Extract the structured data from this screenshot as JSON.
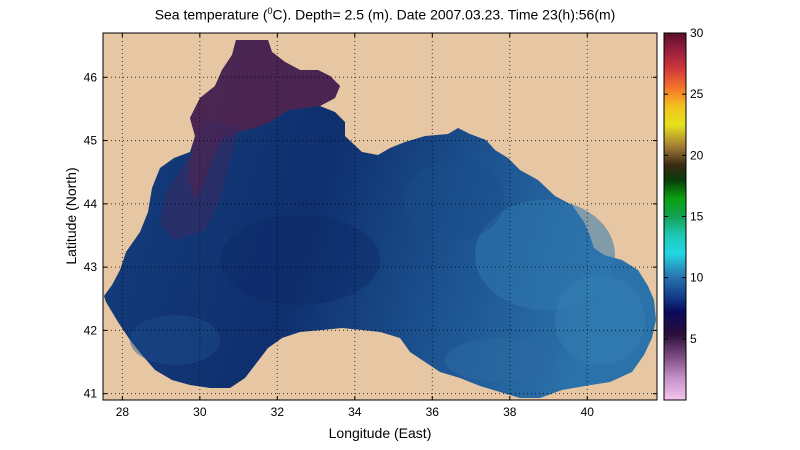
{
  "title": {
    "prefix": "Sea temperature (",
    "superscript": "0",
    "suffix": "C). Depth=  2.5 (m). Date 2007.03.23. Time 23(h):56(m)"
  },
  "axes": {
    "xlabel": "Longitude (East)",
    "ylabel": "Latitude (North)",
    "x_ticks": [
      "28",
      "30",
      "32",
      "34",
      "36",
      "38",
      "40"
    ],
    "y_ticks": [
      "41",
      "42",
      "43",
      "44",
      "45",
      "46"
    ],
    "xlim": [
      27.5,
      41.8
    ],
    "ylim": [
      40.9,
      46.7
    ],
    "grid": true
  },
  "colorbar": {
    "ticks": [
      "5",
      "10",
      "15",
      "20",
      "25",
      "30"
    ],
    "range": [
      0,
      30
    ]
  },
  "colors": {
    "land": "#e6c6a3",
    "nw_shelf": "#50264e",
    "deep_sea": "#123a78",
    "east_sea": "#2a6aa4"
  }
}
